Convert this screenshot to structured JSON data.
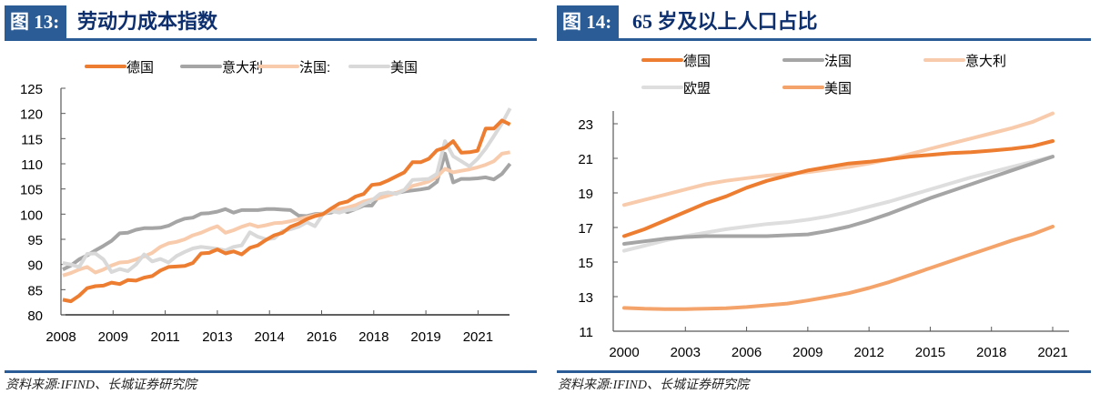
{
  "chart_data": [
    {
      "id": "fig13",
      "type": "line",
      "figure_label": "图 13:",
      "title": "劳动力成本指数",
      "source": "资料来源:IFIND、长城证券研究院",
      "xlabel": "",
      "ylabel": "",
      "ylim": [
        80,
        125
      ],
      "yticks": [
        80,
        85,
        90,
        95,
        100,
        105,
        110,
        115,
        120,
        125
      ],
      "xtick_labels": [
        "2008",
        "2009",
        "2011",
        "2013",
        "2014",
        "2016",
        "2018",
        "2019",
        "2021"
      ],
      "x_frequency": "quarterly",
      "x_start": "2008Q1",
      "x_end": "2021Q4",
      "grid": false,
      "legend_position": "top",
      "series": [
        {
          "name": "德国",
          "color": "#ed7d31",
          "values": [
            83.0,
            82.7,
            83.8,
            85.3,
            85.7,
            85.8,
            86.4,
            86.1,
            86.9,
            86.8,
            87.4,
            87.7,
            88.8,
            89.5,
            89.6,
            89.7,
            90.3,
            92.2,
            92.3,
            93.0,
            92.2,
            92.6,
            92.0,
            93.3,
            93.8,
            94.9,
            95.8,
            96.3,
            97.5,
            98.1,
            99.0,
            99.6,
            100.0,
            101.1,
            102.1,
            102.5,
            103.5,
            104.0,
            105.8,
            106.0,
            106.7,
            107.5,
            108.3,
            110.3,
            110.3,
            111.0,
            112.7,
            113.2,
            114.5,
            112.2,
            112.3,
            112.6,
            117.0,
            117.0,
            118.6,
            117.8
          ]
        },
        {
          "name": "意大利",
          "color": "#a5a5a5",
          "values": [
            89.0,
            89.8,
            91.0,
            91.8,
            92.8,
            93.7,
            94.7,
            96.2,
            96.3,
            96.9,
            97.2,
            97.2,
            97.3,
            97.7,
            98.5,
            99.1,
            99.3,
            100.1,
            100.2,
            100.5,
            101.0,
            100.3,
            100.8,
            100.8,
            100.8,
            101.0,
            101.0,
            100.9,
            100.8,
            99.7,
            99.6,
            100.0,
            100.1,
            100.3,
            101.0,
            100.4,
            101.0,
            101.7,
            101.7,
            103.8,
            104.0,
            104.2,
            104.5,
            104.7,
            104.9,
            105.2,
            106.4,
            112.0,
            106.3,
            107.0,
            107.0,
            107.1,
            107.3,
            106.9,
            108.0,
            110.0
          ]
        },
        {
          "name": "法国:",
          "color": "#f8cbad",
          "values": [
            87.8,
            88.3,
            89.0,
            89.5,
            88.4,
            89.0,
            89.8,
            90.4,
            90.5,
            91.0,
            91.6,
            92.3,
            93.5,
            94.2,
            94.5,
            95.0,
            95.8,
            96.3,
            97.0,
            97.6,
            96.3,
            96.8,
            97.5,
            98.0,
            97.5,
            97.8,
            98.2,
            98.3,
            98.6,
            99.0,
            99.4,
            99.8,
            100.1,
            100.7,
            101.0,
            101.3,
            101.8,
            102.5,
            102.9,
            103.2,
            103.7,
            104.2,
            104.8,
            105.6,
            106.0,
            106.5,
            107.4,
            109.0,
            108.3,
            108.6,
            108.9,
            109.3,
            109.8,
            110.5,
            112.0,
            112.3
          ]
        },
        {
          "name": "美国",
          "color": "#d9d9d9",
          "values": [
            90.3,
            90.0,
            89.5,
            92.1,
            92.2,
            91.0,
            88.5,
            89.1,
            88.7,
            90.0,
            92.0,
            90.6,
            91.1,
            90.4,
            91.7,
            92.5,
            93.2,
            93.5,
            93.3,
            93.1,
            92.8,
            93.5,
            93.8,
            96.4,
            95.5,
            95.0,
            95.2,
            96.6,
            97.0,
            97.5,
            98.4,
            97.6,
            100.0,
            100.6,
            100.3,
            100.8,
            101.0,
            102.0,
            102.7,
            104.0,
            104.3,
            104.0,
            104.8,
            106.8,
            106.9,
            107.0,
            108.0,
            114.5,
            111.5,
            110.5,
            109.5,
            111.0,
            113.0,
            115.5,
            118.0,
            121.0
          ]
        }
      ]
    },
    {
      "id": "fig14",
      "type": "line",
      "figure_label": "图 14:",
      "title": "65 岁及以上人口占比",
      "source": "资料来源:IFIND、长城证券研究院",
      "xlabel": "",
      "ylabel": "",
      "ylim": [
        11,
        24
      ],
      "yticks": [
        11,
        13,
        15,
        17,
        19,
        21,
        23
      ],
      "xlim": [
        2000,
        2021
      ],
      "xticks": [
        2000,
        2003,
        2006,
        2009,
        2012,
        2015,
        2018,
        2021
      ],
      "grid": false,
      "legend_position": "top",
      "x": [
        2000,
        2001,
        2002,
        2003,
        2004,
        2005,
        2006,
        2007,
        2008,
        2009,
        2010,
        2011,
        2012,
        2013,
        2014,
        2015,
        2016,
        2017,
        2018,
        2019,
        2020,
        2021
      ],
      "series": [
        {
          "name": "德国",
          "color": "#ed7d31",
          "values": [
            16.5,
            16.9,
            17.4,
            17.9,
            18.4,
            18.8,
            19.3,
            19.7,
            20.0,
            20.3,
            20.5,
            20.7,
            20.8,
            20.95,
            21.1,
            21.2,
            21.3,
            21.35,
            21.45,
            21.55,
            21.7,
            22.0
          ]
        },
        {
          "name": "法国",
          "color": "#a5a5a5",
          "values": [
            16.05,
            16.2,
            16.35,
            16.45,
            16.5,
            16.5,
            16.5,
            16.5,
            16.55,
            16.6,
            16.8,
            17.05,
            17.4,
            17.8,
            18.25,
            18.7,
            19.1,
            19.5,
            19.9,
            20.3,
            20.7,
            21.1
          ]
        },
        {
          "name": "意大利",
          "color": "#f8cbad",
          "values": [
            18.3,
            18.6,
            18.9,
            19.2,
            19.5,
            19.7,
            19.85,
            20.0,
            20.1,
            20.2,
            20.35,
            20.5,
            20.7,
            20.95,
            21.25,
            21.55,
            21.85,
            22.15,
            22.45,
            22.75,
            23.1,
            23.6
          ]
        },
        {
          "name": "欧盟",
          "color": "#dedede",
          "values": [
            15.65,
            15.95,
            16.25,
            16.5,
            16.7,
            16.9,
            17.05,
            17.2,
            17.3,
            17.45,
            17.65,
            17.9,
            18.2,
            18.5,
            18.85,
            19.2,
            19.55,
            19.9,
            20.2,
            20.5,
            20.8,
            21.1
          ]
        },
        {
          "name": "美国",
          "color": "#f4a46a",
          "values": [
            12.35,
            12.3,
            12.28,
            12.28,
            12.3,
            12.33,
            12.4,
            12.5,
            12.6,
            12.78,
            12.98,
            13.2,
            13.5,
            13.85,
            14.25,
            14.65,
            15.05,
            15.45,
            15.85,
            16.25,
            16.6,
            17.05
          ]
        }
      ]
    }
  ]
}
